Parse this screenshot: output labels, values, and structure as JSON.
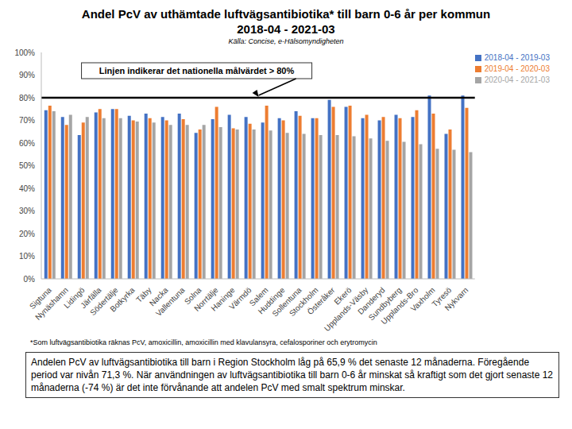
{
  "chart_data": {
    "type": "bar",
    "title": "Andel PcV av uthämtade luftvägsantibiotika* till barn 0-6 år per kommun",
    "period": "2018-04 - 2021-03",
    "source": "Källa: Concise, e-Hälsomyndigheten",
    "annotation": "Linjen indikerar det nationella målvärdet > 80%",
    "reference_line": 80,
    "footnote": "*Som luftvägsantibiotika räknas PcV, amoxicillin, amoxicillin med klavulansyra, cefalosporiner och erytromycin",
    "note": "Andelen PcV av luftvägsantibiotika till barn i Region Stockholm låg på 65,9 % det senaste 12 månaderna. Föregående period var nivån 71,3 %. När användningen av luftvägsantibiotika till barn 0-6 år minskat så kraftigt som det gjort senaste 12 månaderna (-74 %) är det inte förvånande att andelen PcV med smalt spektrum minskar.",
    "categories": [
      "Sigtuna",
      "Nynäshamn",
      "Lidingö",
      "Järfälla",
      "Södertälje",
      "Botkyrka",
      "Täby",
      "Nacka",
      "Vallentuna",
      "Solna",
      "Norrtälje",
      "Haninge",
      "Värmdö",
      "Salem",
      "Huddinge",
      "Sollentuna",
      "Stockholm",
      "Österåker",
      "Ekerö",
      "Upplands-Väsby",
      "Danderyd",
      "Sundbyberg",
      "Upplands-Bro",
      "Vaxholm",
      "Tyresö",
      "Nykvarn"
    ],
    "series": [
      {
        "name": "2018-04 - 2019-03",
        "color": "#4472c4",
        "values": [
          74.5,
          71.5,
          63.5,
          73.5,
          75,
          72,
          73,
          71.5,
          73,
          64.5,
          70.5,
          72.5,
          71.5,
          69,
          71,
          74,
          71,
          79,
          76,
          71,
          70,
          72.5,
          71.5,
          81,
          64,
          81
        ]
      },
      {
        "name": "2019-04 - 2020-03",
        "color": "#ed7d31",
        "values": [
          76.5,
          68,
          69,
          75,
          75,
          70,
          71,
          70,
          70.5,
          66,
          76,
          66.5,
          68.5,
          76.5,
          70,
          72,
          71,
          76,
          76.5,
          72.5,
          71.5,
          71,
          74.5,
          73,
          66,
          75.5
        ]
      },
      {
        "name": "2020-04 - 2021-03",
        "color": "#a5a5a5",
        "values": [
          74,
          72.5,
          71.5,
          71,
          71,
          69.5,
          69,
          68,
          68,
          68,
          67,
          66,
          66,
          65.5,
          64.5,
          64,
          63.5,
          63.5,
          63,
          62,
          61,
          60.5,
          59.5,
          57.5,
          57,
          56
        ]
      }
    ],
    "ylim": [
      0,
      100
    ],
    "yticks": [
      {
        "value": 0,
        "label": "0%"
      },
      {
        "value": 10,
        "label": "10%"
      },
      {
        "value": 20,
        "label": "20%"
      },
      {
        "value": 30,
        "label": "30%"
      },
      {
        "value": 40,
        "label": "40%"
      },
      {
        "value": 50,
        "label": "50%"
      },
      {
        "value": 60,
        "label": "60%"
      },
      {
        "value": 70,
        "label": "70%"
      },
      {
        "value": 80,
        "label": "80%"
      },
      {
        "value": 90,
        "label": "90%"
      },
      {
        "value": 100,
        "label": "100%"
      }
    ],
    "grid": false,
    "legend": "top-right"
  }
}
